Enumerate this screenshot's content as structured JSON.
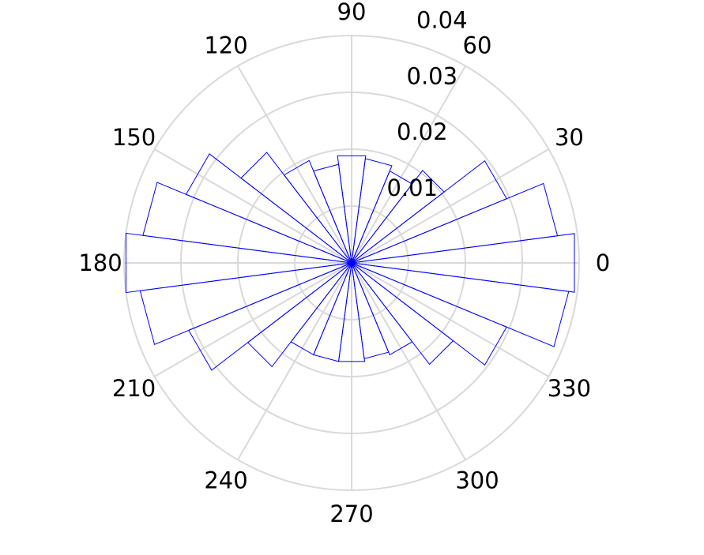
{
  "chart_data": {
    "type": "polar-histogram",
    "title": "",
    "theta_unit": "degrees",
    "theta_tick_labels": [
      "0",
      "30",
      "60",
      "90",
      "120",
      "150",
      "180",
      "210",
      "240",
      "270",
      "300",
      "330"
    ],
    "theta_ticks": [
      0,
      30,
      60,
      90,
      120,
      150,
      180,
      210,
      240,
      270,
      300,
      330
    ],
    "r_tick_labels": [
      "0.01",
      "0.02",
      "0.03",
      "0.04"
    ],
    "r_ticks": [
      0.01,
      0.02,
      0.03,
      0.04
    ],
    "rlim": [
      0,
      0.04
    ],
    "r_label_angle_deg": 80,
    "grid": true,
    "bin_width_deg": 15,
    "bins": [
      {
        "start": -7.5,
        "end": 7.5,
        "value": 0.0395
      },
      {
        "start": 7.5,
        "end": 22.5,
        "value": 0.0365
      },
      {
        "start": 22.5,
        "end": 37.5,
        "value": 0.0295
      },
      {
        "start": 37.5,
        "end": 52.5,
        "value": 0.0205
      },
      {
        "start": 52.5,
        "end": 67.5,
        "value": 0.0175
      },
      {
        "start": 67.5,
        "end": 82.5,
        "value": 0.0185
      },
      {
        "start": 82.5,
        "end": 97.5,
        "value": 0.019
      },
      {
        "start": 97.5,
        "end": 112.5,
        "value": 0.0175
      },
      {
        "start": 112.5,
        "end": 127.5,
        "value": 0.0195
      },
      {
        "start": 127.5,
        "end": 142.5,
        "value": 0.0245
      },
      {
        "start": 142.5,
        "end": 157.5,
        "value": 0.0315
      },
      {
        "start": 157.5,
        "end": 172.5,
        "value": 0.037
      },
      {
        "start": 172.5,
        "end": 187.5,
        "value": 0.04
      },
      {
        "start": 187.5,
        "end": 202.5,
        "value": 0.0375
      },
      {
        "start": 202.5,
        "end": 217.5,
        "value": 0.031
      },
      {
        "start": 217.5,
        "end": 232.5,
        "value": 0.023
      },
      {
        "start": 232.5,
        "end": 247.5,
        "value": 0.0175
      },
      {
        "start": 247.5,
        "end": 262.5,
        "value": 0.0175
      },
      {
        "start": 262.5,
        "end": 277.5,
        "value": 0.0175
      },
      {
        "start": 277.5,
        "end": 292.5,
        "value": 0.017
      },
      {
        "start": 292.5,
        "end": 307.5,
        "value": 0.0175
      },
      {
        "start": 307.5,
        "end": 322.5,
        "value": 0.0225
      },
      {
        "start": 322.5,
        "end": 337.5,
        "value": 0.0295
      },
      {
        "start": 337.5,
        "end": 352.5,
        "value": 0.0385
      }
    ],
    "colors": {
      "bin_edge": "#0000ff",
      "grid": "#d9d9d9",
      "text": "#000000",
      "background": "#ffffff"
    }
  }
}
